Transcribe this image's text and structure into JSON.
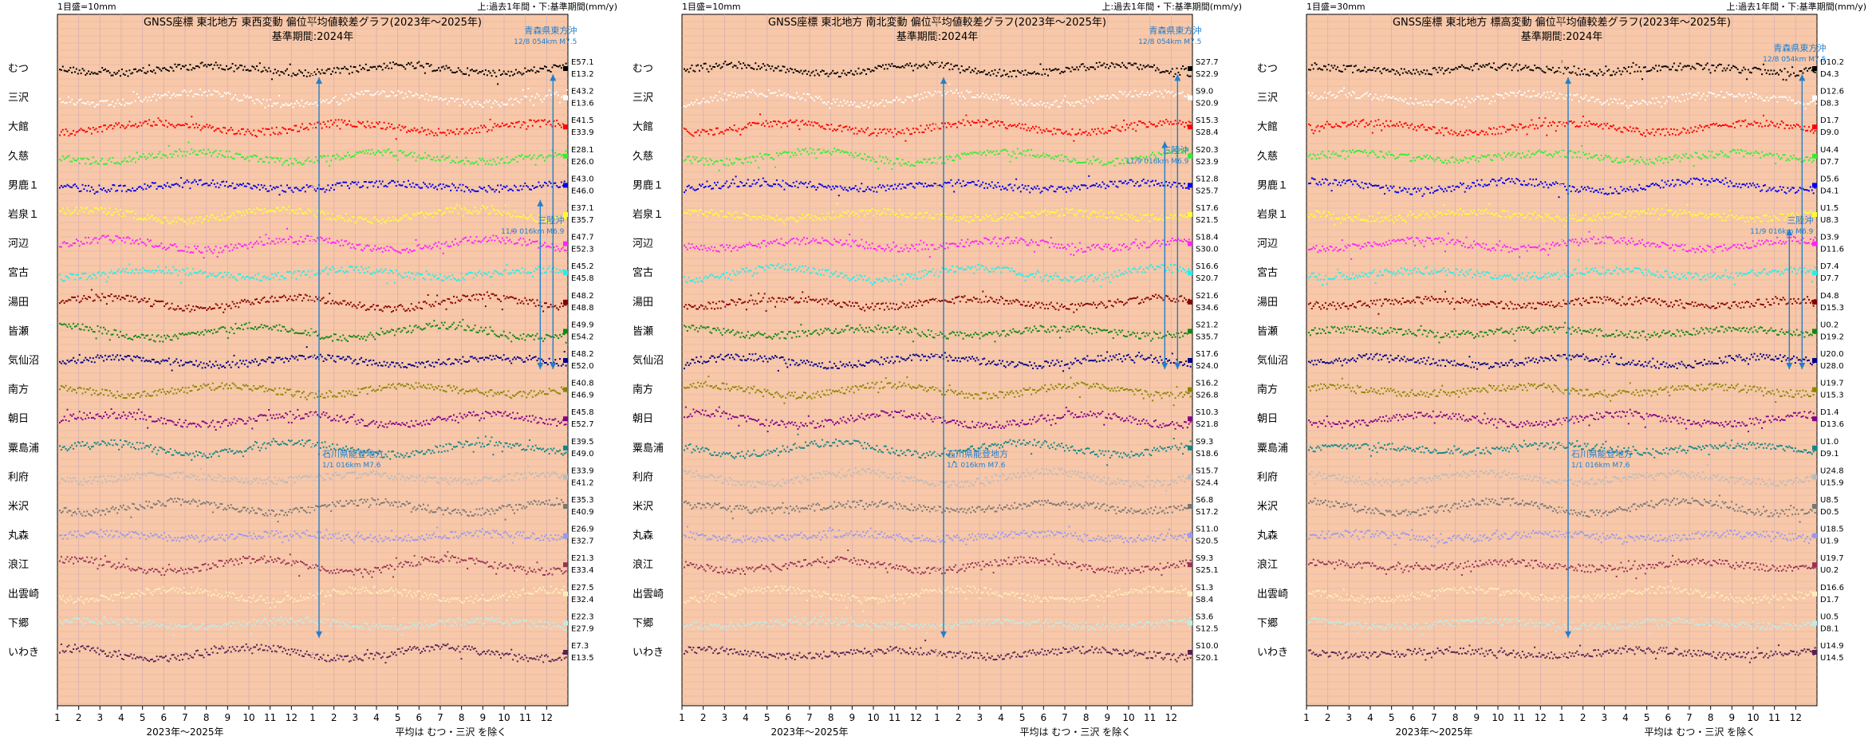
{
  "footer_note": "平均は むつ・三沢 を除く",
  "x_axis_label": "2023年～2025年",
  "chart_data": [
    {
      "type": "scatter",
      "title": "GNSS座標 東北地方 東西変動 偏位平均値較差グラフ(2023年～2025年)",
      "subtitle": "基準期間:2024年",
      "scale_label": "1目盛=10mm",
      "right_header": "上:過去1年間・下:基準期間(mm/y)",
      "month_ticks": [
        "1",
        "2",
        "3",
        "4",
        "5",
        "6",
        "7",
        "8",
        "9",
        "10",
        "11",
        "12",
        "1",
        "2",
        "3",
        "4",
        "5",
        "6",
        "7",
        "8",
        "9",
        "10",
        "11",
        "12"
      ],
      "stations": [
        {
          "name": "むつ",
          "top": "E57.1",
          "bottom": "E13.2",
          "color": "#000000"
        },
        {
          "name": "三沢",
          "top": "E43.2",
          "bottom": "E13.6",
          "color": "#ffffff"
        },
        {
          "name": "大館",
          "top": "E41.5",
          "bottom": "E33.9",
          "color": "#ff0000"
        },
        {
          "name": "久慈",
          "top": "E28.1",
          "bottom": "E26.0",
          "color": "#33ee33"
        },
        {
          "name": "男鹿１",
          "top": "E43.0",
          "bottom": "E46.0",
          "color": "#0000ee"
        },
        {
          "name": "岩泉１",
          "top": "E37.1",
          "bottom": "E35.7",
          "color": "#ffff33"
        },
        {
          "name": "河辺",
          "top": "E47.7",
          "bottom": "E52.3",
          "color": "#ff22ff"
        },
        {
          "name": "宮古",
          "top": "E45.2",
          "bottom": "E45.8",
          "color": "#22eeee"
        },
        {
          "name": "湯田",
          "top": "E48.2",
          "bottom": "E48.8",
          "color": "#880000"
        },
        {
          "name": "皆瀬",
          "top": "E49.9",
          "bottom": "E54.2",
          "color": "#118811"
        },
        {
          "name": "気仙沼",
          "top": "E48.2",
          "bottom": "E52.0",
          "color": "#000088"
        },
        {
          "name": "南方",
          "top": "E40.8",
          "bottom": "E46.9",
          "color": "#888800"
        },
        {
          "name": "朝日",
          "top": "E45.8",
          "bottom": "E52.7",
          "color": "#880088"
        },
        {
          "name": "粟島浦",
          "top": "E39.5",
          "bottom": "E49.0",
          "color": "#118888"
        },
        {
          "name": "利府",
          "top": "E33.9",
          "bottom": "E41.2",
          "color": "#bbbbbb"
        },
        {
          "name": "米沢",
          "top": "E35.3",
          "bottom": "E40.9",
          "color": "#777777"
        },
        {
          "name": "丸森",
          "top": "E26.9",
          "bottom": "E32.7",
          "color": "#9999ee"
        },
        {
          "name": "浪江",
          "top": "E21.3",
          "bottom": "E33.4",
          "color": "#993355"
        },
        {
          "name": "出雲崎",
          "top": "E27.5",
          "bottom": "E32.4",
          "color": "#ffeebb"
        },
        {
          "name": "下郷",
          "top": "E22.3",
          "bottom": "E27.9",
          "color": "#bbeeee"
        },
        {
          "name": "いわき",
          "top": "E7.3",
          "bottom": "E13.5",
          "color": "#552255"
        }
      ],
      "annotations": [
        {
          "line1": "青森県東方沖",
          "line2": "12/8 054km M7.5",
          "month_index": 23.3,
          "from_station": 0.2,
          "to_station": 10.3,
          "text_station": -1.2
        },
        {
          "line1": "三陸沖",
          "line2": "11/9 016km M6.9",
          "month_index": 22.7,
          "from_station": 4.5,
          "to_station": 10.3,
          "text_station": 5.3
        },
        {
          "line1": "石川県能登地方",
          "line2": "1/1 016km M7.6",
          "month_index": 12.3,
          "from_station": 0.3,
          "to_station": 19.5,
          "text_station": 13.3
        }
      ]
    },
    {
      "type": "scatter",
      "title": "GNSS座標 東北地方 南北変動 偏位平均値較差グラフ(2023年～2025年)",
      "subtitle": "基準期間:2024年",
      "scale_label": "1目盛=10mm",
      "right_header": "上:過去1年間・下:基準期間(mm/y)",
      "month_ticks": [
        "1",
        "2",
        "3",
        "4",
        "5",
        "6",
        "7",
        "8",
        "9",
        "10",
        "11",
        "12",
        "1",
        "2",
        "3",
        "4",
        "5",
        "6",
        "7",
        "8",
        "9",
        "10",
        "11",
        "12"
      ],
      "stations": [
        {
          "name": "むつ",
          "top": "S27.7",
          "bottom": "S22.9",
          "color": "#000000"
        },
        {
          "name": "三沢",
          "top": "S9.0",
          "bottom": "S20.9",
          "color": "#ffffff"
        },
        {
          "name": "大館",
          "top": "S15.3",
          "bottom": "S28.4",
          "color": "#ff0000"
        },
        {
          "name": "久慈",
          "top": "S20.3",
          "bottom": "S23.9",
          "color": "#33ee33"
        },
        {
          "name": "男鹿１",
          "top": "S12.8",
          "bottom": "S25.7",
          "color": "#0000ee"
        },
        {
          "name": "岩泉１",
          "top": "S17.6",
          "bottom": "S21.5",
          "color": "#ffff33"
        },
        {
          "name": "河辺",
          "top": "S18.4",
          "bottom": "S30.0",
          "color": "#ff22ff"
        },
        {
          "name": "宮古",
          "top": "S16.6",
          "bottom": "S20.7",
          "color": "#22eeee"
        },
        {
          "name": "湯田",
          "top": "S21.6",
          "bottom": "S34.6",
          "color": "#880000"
        },
        {
          "name": "皆瀬",
          "top": "S21.2",
          "bottom": "S35.7",
          "color": "#118811"
        },
        {
          "name": "気仙沼",
          "top": "S17.6",
          "bottom": "S24.0",
          "color": "#000088"
        },
        {
          "name": "南方",
          "top": "S16.2",
          "bottom": "S26.8",
          "color": "#888800"
        },
        {
          "name": "朝日",
          "top": "S10.3",
          "bottom": "S21.8",
          "color": "#880088"
        },
        {
          "name": "粟島浦",
          "top": "S9.3",
          "bottom": "S18.6",
          "color": "#118888"
        },
        {
          "name": "利府",
          "top": "S15.7",
          "bottom": "S24.4",
          "color": "#bbbbbb"
        },
        {
          "name": "米沢",
          "top": "S6.8",
          "bottom": "S17.2",
          "color": "#777777"
        },
        {
          "name": "丸森",
          "top": "S11.0",
          "bottom": "S20.5",
          "color": "#9999ee"
        },
        {
          "name": "浪江",
          "top": "S9.3",
          "bottom": "S25.1",
          "color": "#993355"
        },
        {
          "name": "出雲崎",
          "top": "S1.3",
          "bottom": "S8.4",
          "color": "#ffeebb"
        },
        {
          "name": "下郷",
          "top": "S3.6",
          "bottom": "S12.5",
          "color": "#bbeeee"
        },
        {
          "name": "いわき",
          "top": "S10.0",
          "bottom": "S20.1",
          "color": "#552255"
        }
      ],
      "annotations": [
        {
          "line1": "青森県東方沖",
          "line2": "12/8 054km M7.5",
          "month_index": 23.3,
          "from_station": 0.2,
          "to_station": 10.3,
          "text_station": -1.2
        },
        {
          "line1": "三陸沖",
          "line2": "11/9 016km M6.9",
          "month_index": 22.7,
          "from_station": 2.5,
          "to_station": 10.3,
          "text_station": 2.9
        },
        {
          "line1": "石川県能登地方",
          "line2": "1/1 016km M7.6",
          "month_index": 12.3,
          "from_station": 0.3,
          "to_station": 19.5,
          "text_station": 13.3
        }
      ]
    },
    {
      "type": "scatter",
      "title": "GNSS座標 東北地方 標高変動 偏位平均値較差グラフ(2023年～2025年)",
      "subtitle": "基準期間:2024年",
      "scale_label": "1目盛=30mm",
      "right_header": "上:過去1年間・下:基準期間(mm/y)",
      "month_ticks": [
        "1",
        "2",
        "3",
        "4",
        "5",
        "6",
        "7",
        "8",
        "9",
        "10",
        "11",
        "12",
        "1",
        "2",
        "3",
        "4",
        "5",
        "6",
        "7",
        "8",
        "9",
        "10",
        "11",
        "12"
      ],
      "stations": [
        {
          "name": "むつ",
          "top": "D10.2",
          "bottom": "D4.3",
          "color": "#000000"
        },
        {
          "name": "三沢",
          "top": "D12.6",
          "bottom": "D8.3",
          "color": "#ffffff"
        },
        {
          "name": "大館",
          "top": "D1.7",
          "bottom": "D9.0",
          "color": "#ff0000"
        },
        {
          "name": "久慈",
          "top": "U4.4",
          "bottom": "D7.7",
          "color": "#33ee33"
        },
        {
          "name": "男鹿１",
          "top": "D5.6",
          "bottom": "D4.1",
          "color": "#0000ee"
        },
        {
          "name": "岩泉１",
          "top": "U1.5",
          "bottom": "U8.3",
          "color": "#ffff33"
        },
        {
          "name": "河辺",
          "top": "D3.9",
          "bottom": "D11.6",
          "color": "#ff22ff"
        },
        {
          "name": "宮古",
          "top": "D7.4",
          "bottom": "D7.7",
          "color": "#22eeee"
        },
        {
          "name": "湯田",
          "top": "D4.8",
          "bottom": "D15.3",
          "color": "#880000"
        },
        {
          "name": "皆瀬",
          "top": "U0.2",
          "bottom": "D19.2",
          "color": "#118811"
        },
        {
          "name": "気仙沼",
          "top": "U20.0",
          "bottom": "U28.0",
          "color": "#000088"
        },
        {
          "name": "南方",
          "top": "U19.7",
          "bottom": "U15.3",
          "color": "#888800"
        },
        {
          "name": "朝日",
          "top": "D1.4",
          "bottom": "D13.6",
          "color": "#880088"
        },
        {
          "name": "粟島浦",
          "top": "U1.0",
          "bottom": "D9.1",
          "color": "#118888"
        },
        {
          "name": "利府",
          "top": "U24.8",
          "bottom": "U15.9",
          "color": "#bbbbbb"
        },
        {
          "name": "米沢",
          "top": "U8.5",
          "bottom": "D0.5",
          "color": "#777777"
        },
        {
          "name": "丸森",
          "top": "U18.5",
          "bottom": "U1.9",
          "color": "#9999ee"
        },
        {
          "name": "浪江",
          "top": "U19.7",
          "bottom": "U0.2",
          "color": "#993355"
        },
        {
          "name": "出雲崎",
          "top": "D16.6",
          "bottom": "D1.7",
          "color": "#ffeebb"
        },
        {
          "name": "下郷",
          "top": "U0.5",
          "bottom": "D8.1",
          "color": "#bbeeee"
        },
        {
          "name": "いわき",
          "top": "U14.9",
          "bottom": "U14.5",
          "color": "#552255"
        }
      ],
      "annotations": [
        {
          "line1": "青森県東方沖",
          "line2": "12/8 054km M7.5",
          "month_index": 23.3,
          "from_station": 0.2,
          "to_station": 10.3,
          "text_station": -0.6
        },
        {
          "line1": "三陸沖",
          "line2": "11/9 016km M6.9",
          "month_index": 22.7,
          "from_station": 5.5,
          "to_station": 10.3,
          "text_station": 5.3
        },
        {
          "line1": "石川県能登地方",
          "line2": "1/1 016km M7.6",
          "month_index": 12.3,
          "from_station": 0.3,
          "to_station": 19.5,
          "text_station": 13.3
        }
      ]
    }
  ]
}
